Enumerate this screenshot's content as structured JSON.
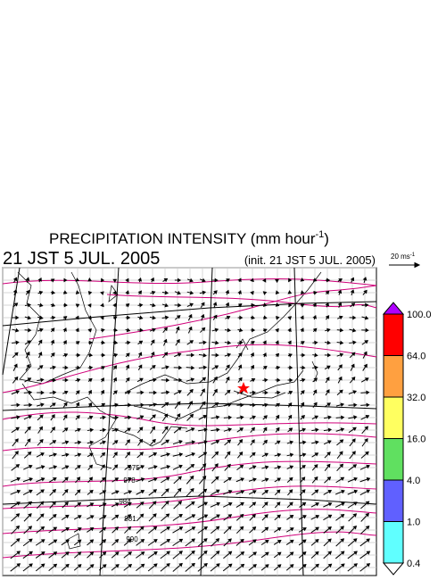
{
  "header": {
    "title_main": "PRECIPITATION INTENSITY (mm hour",
    "title_sup": "-1",
    "title_end": ")",
    "valid_time": "21 JST 5 JUL. 2005",
    "init_time": "(init. 21 JST 5 JUL. 2005)"
  },
  "vector_scale": {
    "label": "20 ms",
    "sup": "-1"
  },
  "colorbar": {
    "labels": [
      "100.0",
      "64.0",
      "32.0",
      "16.0",
      "4.0",
      "1.0",
      "0.4"
    ],
    "colors": [
      "#ff0000",
      "#ffa040",
      "#ffff60",
      "#60e060",
      "#6060ff",
      "#60ffff"
    ],
    "over_color": "#b000ff",
    "under_color": "#ffffff"
  },
  "contour_labels": [
    "975",
    "978",
    "981",
    "984",
    "990"
  ]
}
